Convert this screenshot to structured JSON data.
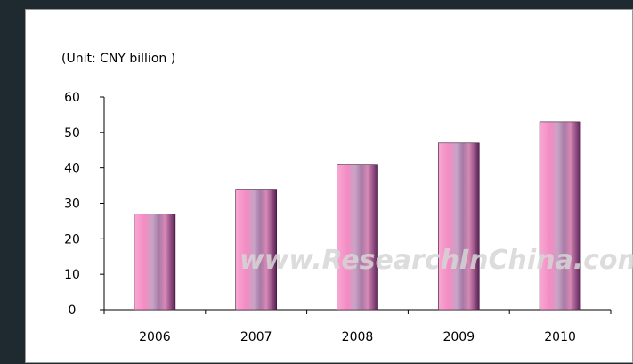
{
  "chart_data": {
    "type": "bar",
    "title": "",
    "unit_label": "(Unit: CNY billion )",
    "xlabel": "",
    "ylabel": "",
    "categories": [
      "2006",
      "2007",
      "2008",
      "2009",
      "2010"
    ],
    "values": [
      27,
      34,
      41,
      47,
      53
    ],
    "ylim": [
      0,
      60
    ],
    "yticks": [
      0,
      10,
      20,
      30,
      40,
      50,
      60
    ],
    "grid": false,
    "legend": "none",
    "bar_colors": [
      "#f7a8d2",
      "#f48cc4",
      "#c7a3c5",
      "#a77aa6",
      "#d889b6",
      "#8a4a7e",
      "#5a1f54"
    ]
  },
  "watermark": "www.ResearchInChina.com"
}
